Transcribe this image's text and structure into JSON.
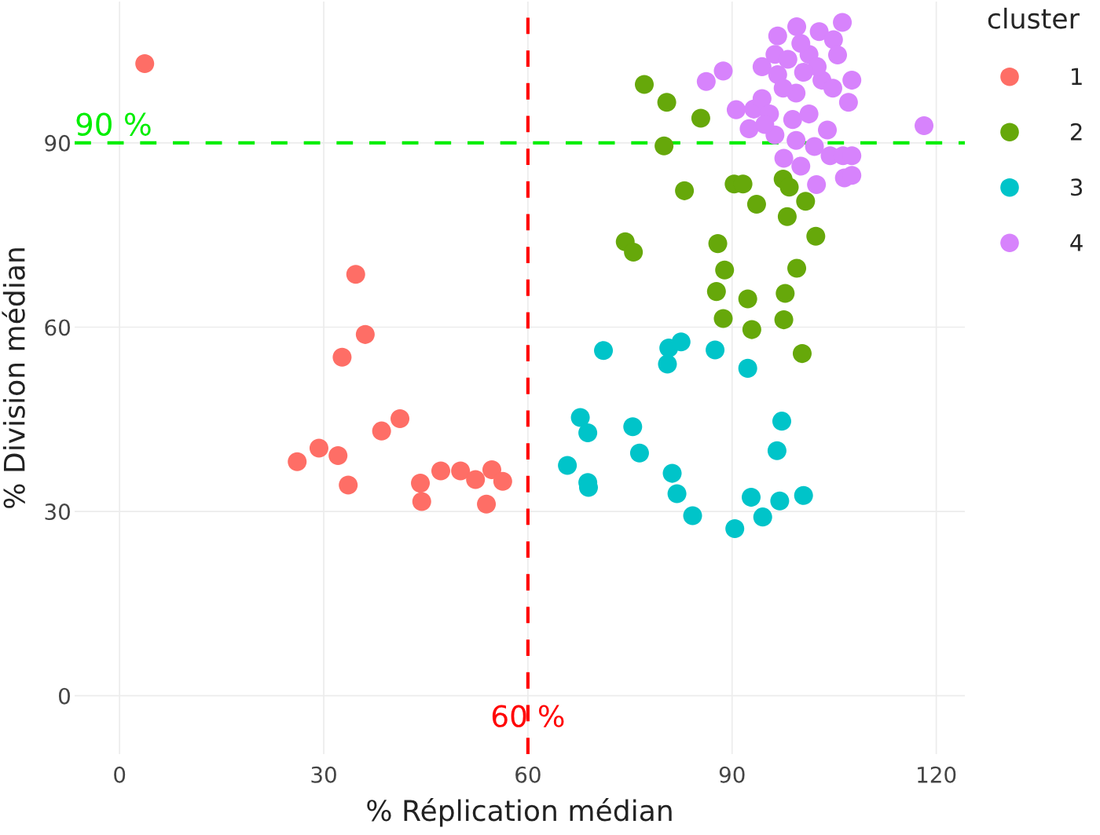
{
  "chart_data": {
    "type": "scatter",
    "xlabel": "% Réplication médian",
    "ylabel": "% Division médian",
    "legend_title": "cluster",
    "xlim": [
      -6.6,
      124.2
    ],
    "ylim": [
      -9.5,
      113
    ],
    "xticks": [
      0,
      30,
      60,
      90,
      120
    ],
    "yticks": [
      0,
      30,
      60,
      90
    ],
    "grid": true,
    "legend": "right",
    "marker": "circle",
    "ref_lines": [
      {
        "axis": "x",
        "value": 60,
        "label": "60 %",
        "color": "#ff0000",
        "line_style": "dashed"
      },
      {
        "axis": "y",
        "value": 90,
        "label": "90 %",
        "color": "#00ee00",
        "line_style": "dashed"
      }
    ],
    "series": [
      {
        "name": "1",
        "color": "#fe6e66",
        "x": [
          3.7,
          34.7,
          36.1,
          32.7,
          38.5,
          41.2,
          26.1,
          29.3,
          32.1,
          33.6,
          44.2,
          44.4,
          47.2,
          50.1,
          52.3,
          54.7,
          56.3,
          53.9
        ],
        "values": [
          102.9,
          68.6,
          58.8,
          55.1,
          43.1,
          45.1,
          38.1,
          40.3,
          39.1,
          34.3,
          34.6,
          31.6,
          36.6,
          36.6,
          35.2,
          36.8,
          34.9,
          31.2
        ]
      },
      {
        "name": "2",
        "color": "#66a80a",
        "x": [
          77.1,
          80.4,
          85.4,
          80.0,
          83.0,
          90.3,
          91.6,
          97.5,
          98.4,
          93.6,
          100.8,
          98.1,
          102.3,
          74.3,
          75.5,
          87.9,
          88.9,
          99.5,
          87.7,
          92.3,
          97.8,
          88.7,
          97.6,
          92.9,
          100.3
        ],
        "values": [
          99.5,
          96.6,
          94.0,
          89.5,
          82.2,
          83.3,
          83.3,
          84.1,
          82.8,
          80.0,
          80.5,
          78.0,
          74.8,
          73.9,
          72.2,
          73.6,
          69.3,
          69.6,
          65.8,
          64.6,
          65.5,
          61.4,
          61.2,
          59.6,
          55.7
        ]
      },
      {
        "name": "3",
        "color": "#00c4c9",
        "x": [
          71.1,
          80.7,
          82.5,
          80.5,
          87.5,
          92.3,
          67.7,
          68.8,
          75.4,
          76.4,
          65.8,
          68.8,
          68.9,
          81.2,
          81.9,
          84.2,
          90.4,
          92.8,
          94.5,
          97.0,
          100.5,
          97.3,
          96.6
        ],
        "values": [
          56.2,
          56.6,
          57.6,
          54.0,
          56.3,
          53.3,
          45.3,
          42.8,
          43.8,
          39.5,
          37.5,
          34.7,
          33.9,
          36.2,
          32.9,
          29.3,
          27.2,
          32.3,
          29.1,
          31.7,
          32.6,
          44.7,
          39.9
        ]
      },
      {
        "name": "4",
        "color": "#d783fc",
        "x": [
          106.2,
          88.7,
          86.2,
          118.2,
          90.6,
          92.5,
          93.2,
          94.4,
          99.5,
          102.8,
          104.9,
          105.5,
          107.6,
          107.1,
          104.0,
          102.1,
          104.4,
          106.3,
          107.6,
          106.5,
          107.6,
          102.4,
          100.1,
          97.6,
          96.3,
          94.4,
          96.7,
          96.3,
          96.7,
          99.4,
          98.9,
          99.4,
          101.3,
          103.2,
          101.3,
          102.5,
          104.8,
          100.1,
          98.2,
          97.5,
          95.5,
          100.5,
          94.8
        ],
        "values": [
          109.6,
          101.7,
          100.0,
          92.8,
          95.4,
          92.3,
          95.5,
          102.4,
          108.9,
          108.1,
          106.8,
          104.3,
          100.2,
          96.6,
          92.1,
          89.4,
          87.9,
          87.9,
          87.9,
          84.3,
          84.7,
          83.2,
          86.2,
          87.5,
          91.3,
          97.2,
          107.4,
          104.4,
          101.1,
          98.1,
          93.8,
          90.4,
          94.7,
          100.2,
          104.4,
          102.4,
          98.9,
          106.2,
          103.6,
          98.9,
          94.7,
          101.5,
          93.0
        ]
      }
    ]
  }
}
